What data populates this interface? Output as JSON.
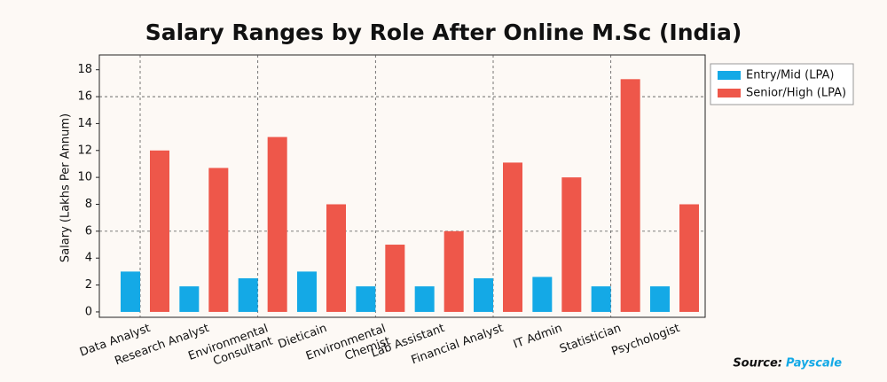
{
  "chart_data": {
    "type": "bar",
    "title": "Salary Ranges by Role After Online M.Sc (India)",
    "y_label": "Salary (Lakhs Per Annum)",
    "categories": [
      "Data Analyst",
      "Research Analyst",
      "Environmental\nConsultant",
      "Dieticain",
      "Environmental\nChemist",
      "Lab Assistant",
      "Financial Analyst",
      "IT Admin",
      "Statistician",
      "Psychologist"
    ],
    "series": [
      {
        "name": "Entry/Mid (LPA)",
        "color": "#14a9e6",
        "values": [
          3.0,
          1.9,
          2.5,
          3.0,
          1.9,
          1.9,
          2.5,
          2.6,
          1.9,
          1.9
        ]
      },
      {
        "name": "Senior/High (LPA)",
        "color": "#ee574a",
        "values": [
          12.0,
          10.7,
          13.0,
          8.0,
          5.0,
          6.0,
          11.1,
          10.0,
          17.3,
          8.0
        ]
      }
    ],
    "ylim": [
      -0.4,
      19.1
    ],
    "yticks": [
      0,
      2,
      4,
      6,
      8,
      10,
      12,
      14,
      16,
      18
    ],
    "ygrid": [
      6,
      16
    ],
    "legend": "upper right",
    "source_label": "Source:",
    "source": "Payscale"
  }
}
